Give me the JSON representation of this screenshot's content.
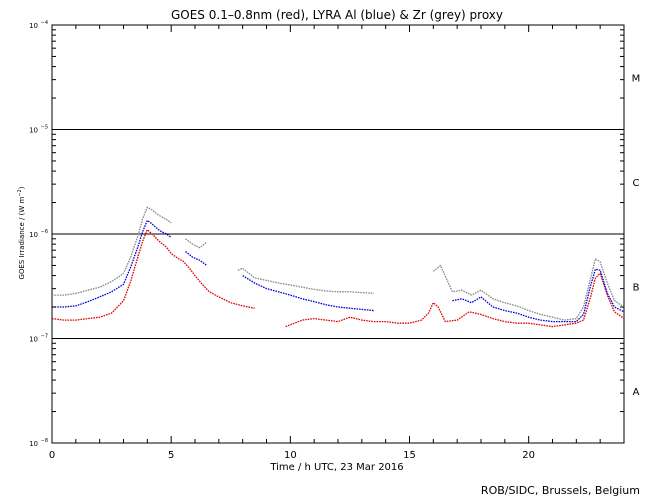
{
  "chart_data": {
    "type": "line",
    "title": "GOES 0.1–0.8nm (red), LYRA Al (blue) & Zr (grey) proxy",
    "xlabel": "Time / h UTC, 23 Mar 2016",
    "ylabel": {
      "main": "GOES Irradiance / (W m",
      "sup": "−2",
      "close": ")"
    },
    "credit": "ROB/SIDC, Brussels, Belgium",
    "xlim": [
      0,
      24
    ],
    "ylim_log10": [
      -8,
      -4
    ],
    "yscale": "log",
    "x_ticks": [
      {
        "value": 0,
        "label": "0"
      },
      {
        "value": 5,
        "label": "5"
      },
      {
        "value": 10,
        "label": "10"
      },
      {
        "value": 15,
        "label": "15"
      },
      {
        "value": 20,
        "label": "20"
      }
    ],
    "y_ticks": [
      {
        "value": -8,
        "base": "10",
        "exp": "−8"
      },
      {
        "value": -7,
        "base": "10",
        "exp": "−7"
      },
      {
        "value": -6,
        "base": "10",
        "exp": "−6"
      },
      {
        "value": -5,
        "base": "10",
        "exp": "−5"
      },
      {
        "value": -4,
        "base": "10",
        "exp": "−4"
      }
    ],
    "class_levels": [
      -7,
      -6,
      -5
    ],
    "flare_classes": [
      {
        "label": "A",
        "center": -7.5
      },
      {
        "label": "B",
        "center": -6.5
      },
      {
        "label": "C",
        "center": -5.5
      },
      {
        "label": "M",
        "center": -4.5
      }
    ],
    "series": [
      {
        "name": "GOES 0.1-0.8nm",
        "color": "#e00000",
        "x": [
          0,
          0.5,
          1,
          1.5,
          2,
          2.5,
          3,
          3.3,
          3.6,
          3.8,
          4.0,
          4.2,
          4.5,
          4.8,
          5.0,
          5.3,
          5.5,
          5.8,
          6.0,
          6.3,
          6.6,
          7.0,
          7.5,
          8.0,
          8.5
        ],
        "y": [
          1.55e-07,
          1.5e-07,
          1.5e-07,
          1.55e-07,
          1.6e-07,
          1.75e-07,
          2.3e-07,
          3.5e-07,
          6e-07,
          8.5e-07,
          1.1e-06,
          1e-06,
          8.5e-07,
          7.5e-07,
          6.5e-07,
          5.8e-07,
          5.5e-07,
          4.6e-07,
          4e-07,
          3.3e-07,
          2.8e-07,
          2.5e-07,
          2.2e-07,
          2.05e-07,
          1.95e-07
        ]
      },
      {
        "name": "GOES 0.1-0.8nm (cont.)",
        "color": "#e00000",
        "x": [
          9.8,
          10.5,
          11.0,
          11.5,
          12.0,
          12.5,
          13.0,
          13.5,
          14.0,
          14.5,
          15.0,
          15.5,
          15.8,
          16.0,
          16.2,
          16.5,
          17.0,
          17.5,
          18.0,
          18.5,
          19.0,
          19.5,
          20.0,
          20.5,
          21.0,
          21.5,
          22.0,
          22.3,
          22.6,
          22.8,
          23.0,
          23.3,
          23.6,
          24.0
        ],
        "y": [
          1.3e-07,
          1.5e-07,
          1.55e-07,
          1.5e-07,
          1.45e-07,
          1.6e-07,
          1.5e-07,
          1.45e-07,
          1.45e-07,
          1.4e-07,
          1.4e-07,
          1.5e-07,
          1.75e-07,
          2.2e-07,
          2e-07,
          1.45e-07,
          1.5e-07,
          1.8e-07,
          1.7e-07,
          1.55e-07,
          1.45e-07,
          1.4e-07,
          1.4e-07,
          1.35e-07,
          1.3e-07,
          1.35e-07,
          1.4e-07,
          1.5e-07,
          2.5e-07,
          3.8e-07,
          4.2e-07,
          2.6e-07,
          1.8e-07,
          1.55e-07
        ]
      },
      {
        "name": "LYRA Al proxy",
        "color": "#0000dd",
        "x": [
          0,
          0.5,
          1,
          1.5,
          2,
          2.5,
          3,
          3.3,
          3.6,
          3.8,
          4.0,
          4.2,
          4.5,
          4.8,
          5.0
        ],
        "y": [
          2e-07,
          2e-07,
          2.05e-07,
          2.25e-07,
          2.5e-07,
          2.8e-07,
          3.3e-07,
          4.8e-07,
          7.5e-07,
          1.05e-06,
          1.35e-06,
          1.25e-06,
          1.08e-06,
          1e-06,
          9.3e-07
        ]
      },
      {
        "name": "LYRA Al proxy (cont.)",
        "color": "#0000dd",
        "x": [
          5.6,
          5.9,
          6.2,
          6.5
        ],
        "y": [
          6.8e-07,
          6e-07,
          5.6e-07,
          5e-07
        ]
      },
      {
        "name": "LYRA Al proxy (cont. 2)",
        "color": "#0000dd",
        "x": [
          8.0,
          8.5,
          9.0,
          9.5,
          10.0,
          10.5,
          11.0,
          11.5,
          12.0,
          12.5,
          13.0,
          13.5
        ],
        "y": [
          4e-07,
          3.4e-07,
          3e-07,
          2.8e-07,
          2.6e-07,
          2.4e-07,
          2.25e-07,
          2.1e-07,
          2e-07,
          1.95e-07,
          1.9e-07,
          1.85e-07
        ]
      },
      {
        "name": "LYRA Al proxy (cont. 3)",
        "color": "#0000dd",
        "x": [
          16.8,
          17.2,
          17.6,
          18.0,
          18.5,
          19.0,
          19.5,
          20.0,
          20.5,
          21.0,
          21.5,
          22.0,
          22.3,
          22.6,
          22.8,
          23.0,
          23.3,
          23.6,
          24.0
        ],
        "y": [
          2.3e-07,
          2.4e-07,
          2.2e-07,
          2.5e-07,
          2e-07,
          1.85e-07,
          1.75e-07,
          1.6e-07,
          1.5e-07,
          1.45e-07,
          1.45e-07,
          1.45e-07,
          1.7e-07,
          3.2e-07,
          4.6e-07,
          4.5e-07,
          2.7e-07,
          2e-07,
          1.8e-07
        ]
      },
      {
        "name": "LYRA Zr proxy",
        "color": "#888888",
        "x": [
          0,
          0.5,
          1,
          1.5,
          2,
          2.5,
          3,
          3.3,
          3.6,
          3.8,
          4.0,
          4.2,
          4.5,
          4.8,
          5.0
        ],
        "y": [
          2.6e-07,
          2.6e-07,
          2.7e-07,
          2.9e-07,
          3.1e-07,
          3.5e-07,
          4.2e-07,
          6e-07,
          9.5e-07,
          1.4e-06,
          1.8e-06,
          1.7e-06,
          1.5e-06,
          1.38e-06,
          1.28e-06
        ]
      },
      {
        "name": "LYRA Zr proxy (cont.)",
        "color": "#888888",
        "x": [
          5.6,
          5.9,
          6.2,
          6.5
        ],
        "y": [
          9e-07,
          8e-07,
          7.4e-07,
          8.4e-07
        ]
      },
      {
        "name": "LYRA Zr proxy (cont. 2)",
        "color": "#888888",
        "x": [
          7.8,
          8.0,
          8.5,
          9.0,
          9.5,
          10.0,
          10.5,
          11.0,
          11.5,
          12.0,
          12.5,
          13.0,
          13.5
        ],
        "y": [
          4.5e-07,
          4.7e-07,
          3.8e-07,
          3.6e-07,
          3.4e-07,
          3.25e-07,
          3.1e-07,
          2.95e-07,
          2.85e-07,
          2.8e-07,
          2.8e-07,
          2.75e-07,
          2.7e-07
        ]
      },
      {
        "name": "LYRA Zr proxy (cont. 3)",
        "color": "#888888",
        "x": [
          16.0,
          16.3,
          16.8,
          17.2,
          17.6,
          18.0,
          18.5,
          19.0,
          19.5,
          20.0,
          20.5,
          21.0,
          21.5,
          22.0,
          22.3,
          22.6,
          22.8,
          23.0,
          23.3,
          23.6,
          24.0
        ],
        "y": [
          4.4e-07,
          5e-07,
          2.8e-07,
          2.9e-07,
          2.6e-07,
          2.9e-07,
          2.4e-07,
          2.2e-07,
          2.05e-07,
          1.85e-07,
          1.7e-07,
          1.6e-07,
          1.5e-07,
          1.55e-07,
          2e-07,
          3.8e-07,
          5.8e-07,
          5.4e-07,
          3.4e-07,
          2.3e-07,
          2e-07
        ]
      }
    ]
  }
}
